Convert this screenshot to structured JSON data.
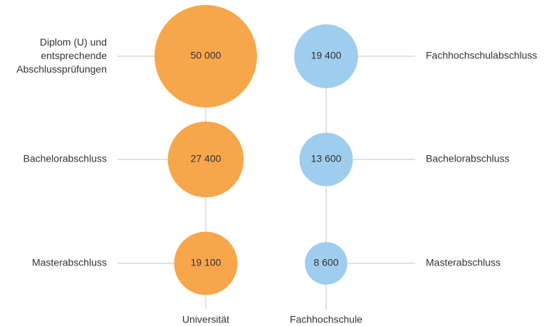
{
  "chart_data": {
    "type": "bubble",
    "series": [
      {
        "name": "Universität",
        "color": "#f7a64a",
        "labels": [
          "Diplom (U) und\nentsprechende\nAbschlussprüfungen",
          "Bachelorabschluss",
          "Masterabschluss"
        ],
        "values": [
          50000,
          27400,
          19100
        ],
        "value_labels": [
          "50 000",
          "27 400",
          "19 100"
        ]
      },
      {
        "name": "Fachhochschule",
        "color": "#9fcdee",
        "labels": [
          "Fachhochschulabschluss",
          "Bachelorabschluss",
          "Masterabschluss"
        ],
        "values": [
          19400,
          13600,
          8600
        ],
        "value_labels": [
          "19 400",
          "13 600",
          "8 600"
        ]
      }
    ]
  }
}
